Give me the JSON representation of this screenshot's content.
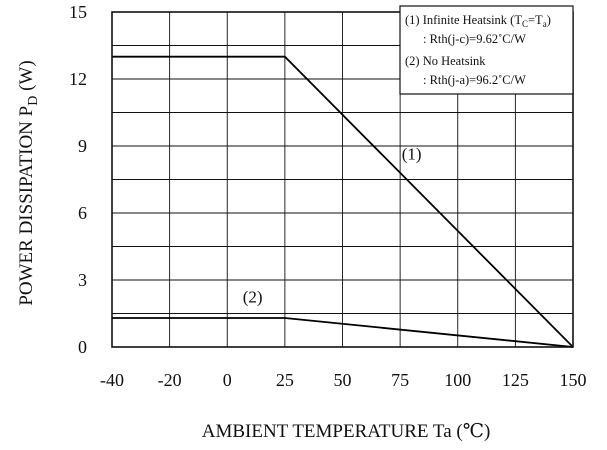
{
  "chart_data": {
    "type": "line",
    "xlabel": "AMBIENT TEMPERATURE  Ta (℃)",
    "ylabel": {
      "main": "POWER DISSIPATION P",
      "sub": "D",
      "unit": " (W)"
    },
    "x_ticks": [
      "-40",
      "-20",
      "0",
      "25",
      "50",
      "75",
      "100",
      "125",
      "150"
    ],
    "x_tick_values": [
      -40,
      -20,
      0,
      25,
      50,
      75,
      100,
      125,
      150
    ],
    "y_ticks": [
      "0",
      "3",
      "6",
      "9",
      "12",
      "15"
    ],
    "y_tick_values": [
      0,
      3,
      6,
      9,
      12,
      15
    ],
    "xlim": [
      -40,
      150
    ],
    "ylim": [
      0,
      15
    ],
    "grid": true,
    "series": [
      {
        "name": "(1)",
        "x": [
          -40,
          25,
          150
        ],
        "y": [
          13.0,
          13.0,
          0
        ]
      },
      {
        "name": "(2)",
        "x": [
          -40,
          25,
          150
        ],
        "y": [
          1.3,
          1.3,
          0
        ]
      }
    ],
    "callouts": [
      {
        "text": "(1)",
        "x": 80,
        "y": 8.4
      },
      {
        "text": "(2)",
        "x": 11,
        "y": 2.0
      }
    ],
    "legend": {
      "position": "top-right",
      "item1": {
        "prefix": "(1) Infinite Heatsink (T",
        "sub1": "C",
        "mid": "=T",
        "sub2": "a",
        "suffix": ")",
        "line2": ": Rth(j-c)=9.62˚C/W"
      },
      "item2": {
        "line1": "(2) No Heatsink",
        "line2": ": Rth(j-a)=96.2˚C/W"
      }
    }
  }
}
